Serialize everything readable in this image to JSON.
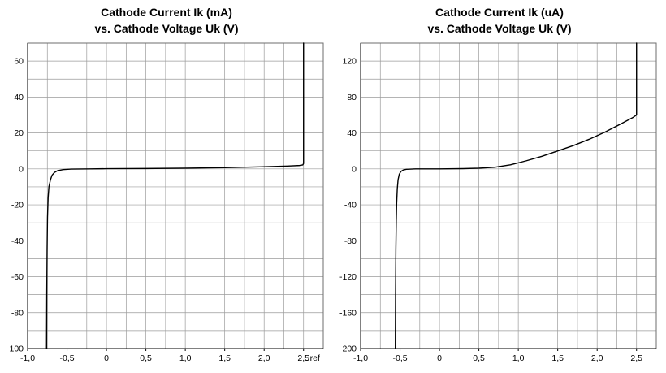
{
  "colors": {
    "background": "#ffffff",
    "title": "#000000",
    "grid": "#9b9b9b",
    "border": "#6e6e6e",
    "axis": "#000000",
    "curve": "#000000",
    "tick_label": "#000000"
  },
  "chart_data": [
    {
      "type": "line",
      "title": "Cathode Current Ik (mA)",
      "subtitle": "vs. Cathode Voltage Uk (V)",
      "xlabel": "",
      "ylabel": "",
      "x_axis_suffix": "Uref",
      "xlim": [
        -1.0,
        2.75
      ],
      "ylim": [
        -100,
        70
      ],
      "x_grid_step": 0.25,
      "y_grid_step": 10,
      "x_ticks": [
        -1.0,
        -0.5,
        0,
        0.5,
        1.0,
        1.5,
        2.0,
        2.5
      ],
      "x_tick_labels": [
        "-1,0",
        "-0,5",
        "0",
        "0,5",
        "1,0",
        "1,5",
        "2,0",
        "2,5"
      ],
      "y_ticks": [
        60,
        40,
        20,
        0,
        -20,
        -40,
        -60,
        -80,
        -100
      ],
      "y_tick_labels": [
        "60",
        "40",
        "20",
        "0",
        "-20",
        "-40",
        "-60",
        "-80",
        "-100"
      ],
      "grid": true,
      "legend": "none",
      "series": [
        {
          "name": "Ik (mA)",
          "x": [
            -0.76,
            -0.757,
            -0.753,
            -0.748,
            -0.74,
            -0.73,
            -0.71,
            -0.69,
            -0.66,
            -0.62,
            -0.55,
            -0.45,
            -0.2,
            0.0,
            0.5,
            1.0,
            1.5,
            2.0,
            2.3,
            2.45,
            2.49,
            2.5,
            2.5
          ],
          "y": [
            -100,
            -70,
            -45,
            -27,
            -16,
            -10,
            -6,
            -3.5,
            -2,
            -1,
            -0.4,
            -0.1,
            0.0,
            0.1,
            0.2,
            0.4,
            0.7,
            1.2,
            1.6,
            1.9,
            2.2,
            3.0,
            70
          ]
        }
      ]
    },
    {
      "type": "line",
      "title": "Cathode Current Ik (uA)",
      "subtitle": "vs. Cathode Voltage Uk (V)",
      "xlabel": "",
      "ylabel": "",
      "x_axis_suffix": "",
      "xlim": [
        -1.0,
        2.75
      ],
      "ylim": [
        -200,
        140
      ],
      "x_grid_step": 0.25,
      "y_grid_step": 20,
      "x_ticks": [
        -1.0,
        -0.5,
        0,
        0.5,
        1.0,
        1.5,
        2.0,
        2.5
      ],
      "x_tick_labels": [
        "-1,0",
        "-0,5",
        "0",
        "0,5",
        "1,0",
        "1,5",
        "2,0",
        "2,5"
      ],
      "y_ticks": [
        120,
        80,
        40,
        0,
        -40,
        -80,
        -120,
        -160,
        -200
      ],
      "y_tick_labels": [
        "120",
        "80",
        "40",
        "0",
        "-40",
        "-80",
        "-120",
        "-160",
        "-200"
      ],
      "grid": true,
      "legend": "none",
      "series": [
        {
          "name": "Ik (uA)",
          "x": [
            -0.56,
            -0.557,
            -0.553,
            -0.548,
            -0.543,
            -0.535,
            -0.525,
            -0.51,
            -0.49,
            -0.46,
            -0.42,
            -0.3,
            0.0,
            0.3,
            0.5,
            0.7,
            0.9,
            1.1,
            1.3,
            1.5,
            1.7,
            1.9,
            2.1,
            2.3,
            2.45,
            2.5,
            2.5
          ],
          "y": [
            -200,
            -140,
            -90,
            -58,
            -38,
            -22,
            -12,
            -6,
            -3,
            -1.2,
            -0.4,
            0.0,
            0.0,
            0.3,
            0.8,
            1.8,
            4.5,
            9,
            14,
            20,
            26,
            33,
            41,
            50,
            57,
            60,
            140
          ]
        }
      ]
    }
  ]
}
